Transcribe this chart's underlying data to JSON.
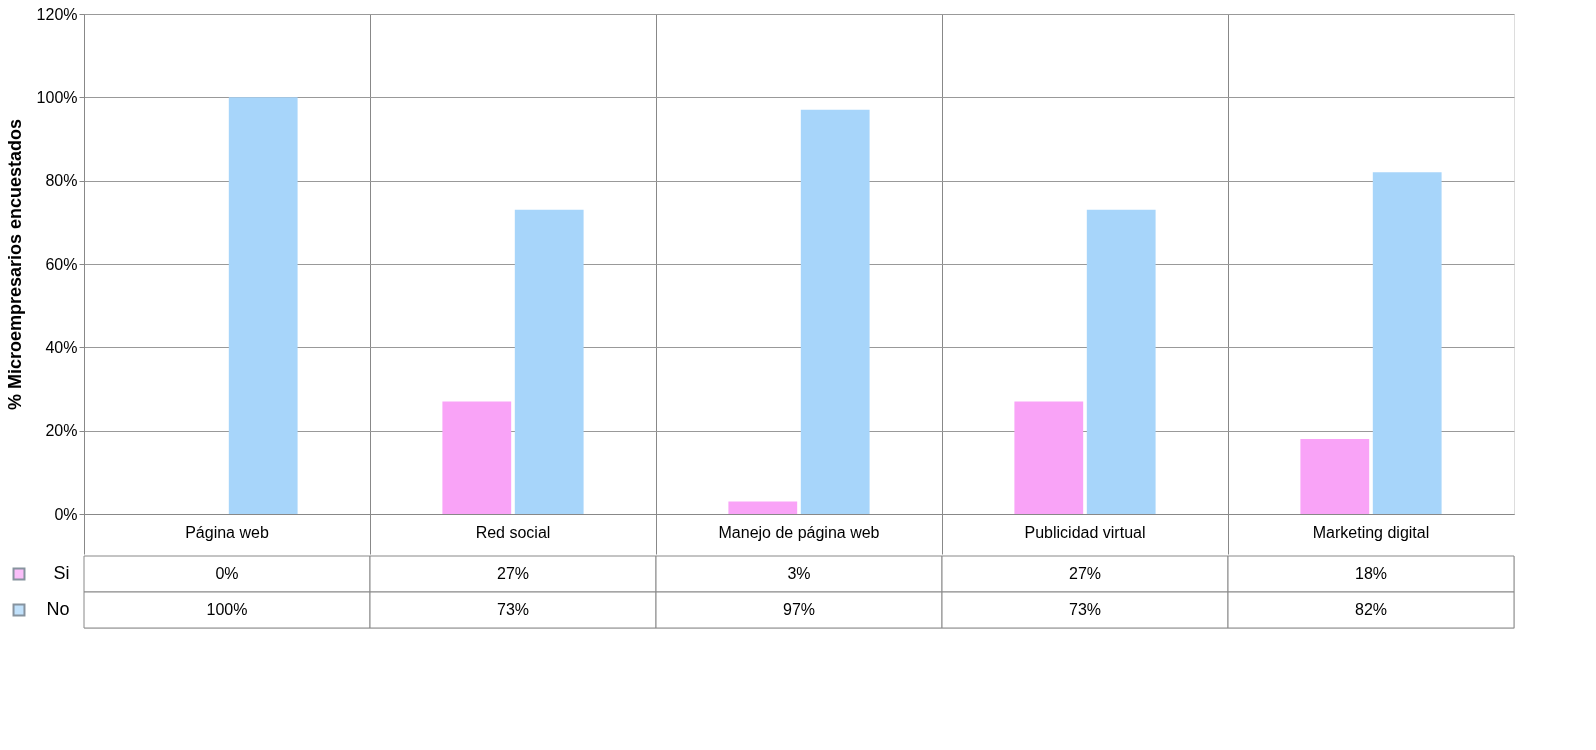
{
  "chart_data": {
    "type": "bar",
    "ylabel": "% Microempresarios encuestados",
    "categories": [
      "Página web",
      "Red social",
      "Manejo de página web",
      "Publicidad virtual",
      "Marketing digital"
    ],
    "series": [
      {
        "name": "Si",
        "color": "#f9a3f7",
        "values": [
          0,
          27,
          3,
          27,
          18
        ],
        "value_labels": [
          "0%",
          "27%",
          "3%",
          "27%",
          "18%"
        ]
      },
      {
        "name": "No",
        "color": "#a7d5fa",
        "values": [
          100,
          73,
          97,
          73,
          82
        ],
        "value_labels": [
          "100%",
          "73%",
          "97%",
          "73%",
          "82%"
        ]
      }
    ],
    "ylim": [
      0,
      120
    ],
    "yticks": [
      {
        "value": 0,
        "label": "0%"
      },
      {
        "value": 20,
        "label": "20%"
      },
      {
        "value": 40,
        "label": "40%"
      },
      {
        "value": 60,
        "label": "60%"
      },
      {
        "value": 80,
        "label": "80%"
      },
      {
        "value": 100,
        "label": "100%"
      },
      {
        "value": 120,
        "label": "120%"
      }
    ],
    "grid": "y",
    "legend": "bottom"
  }
}
